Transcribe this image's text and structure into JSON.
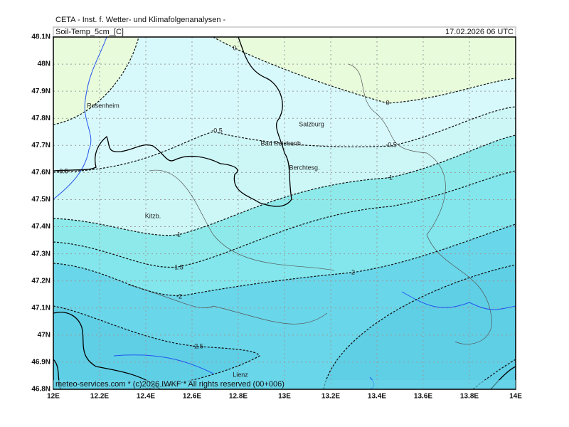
{
  "header": {
    "title": "CETA - Inst. f. Wetter- und Klimafolgenanalysen -",
    "field": "Soil-Temp_5cm_[C]",
    "time": "17.02.2026 06 UTC"
  },
  "axes": {
    "lat_labels": [
      "48.1N",
      "48N",
      "47.9N",
      "47.8N",
      "47.7N",
      "47.6N",
      "47.5N",
      "47.4N",
      "47.3N",
      "47.2N",
      "47.1N",
      "47N",
      "46.9N",
      "46.8N"
    ],
    "lon_labels": [
      "12E",
      "12.2E",
      "12.4E",
      "12.6E",
      "12.8E",
      "13E",
      "13.2E",
      "13.4E",
      "13.6E",
      "13.8E",
      "14E"
    ]
  },
  "places": [
    "Rosenheim",
    "Salzburg",
    "Bad Reichenh.",
    "Berchtesg.",
    "Kitzb.",
    "Lienz"
  ],
  "contour_labels": [
    "0",
    "0",
    "-0.5",
    "-0.5",
    "-0.5",
    "-1",
    "-1",
    "-1.5",
    "-2",
    "-2",
    "-2.5"
  ],
  "footer": "meteo-services.com * (c)2026 IWKF * All rights reserved (00+006)"
}
